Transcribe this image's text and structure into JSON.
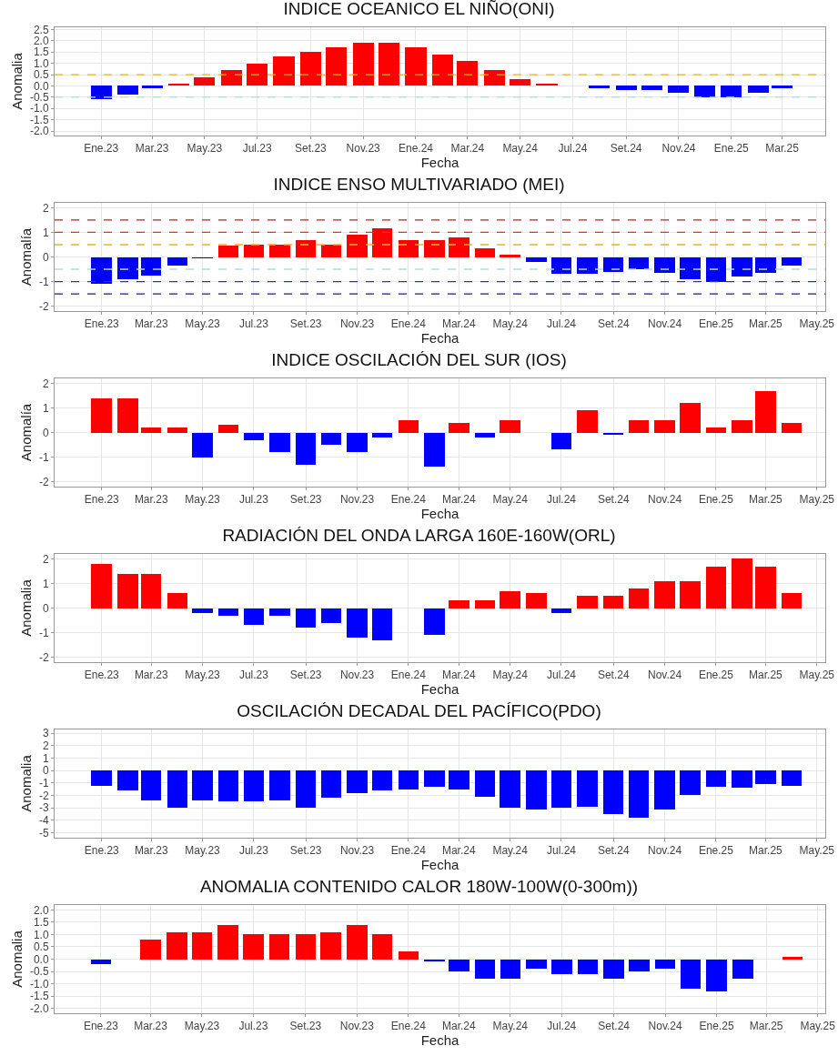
{
  "chart_data": [
    {
      "type": "bar",
      "title": "INDICE OCEANICO EL NIÑO(ONI)",
      "xlabel": "Fecha",
      "ylabel": "Anomalia",
      "x": [
        "2023-01",
        "2023-02",
        "2023-03",
        "2023-04",
        "2023-05",
        "2023-06",
        "2023-07",
        "2023-08",
        "2023-09",
        "2023-10",
        "2023-11",
        "2023-12",
        "2024-01",
        "2024-02",
        "2024-03",
        "2024-04",
        "2024-05",
        "2024-06",
        "2024-07",
        "2024-08",
        "2024-09",
        "2024-10",
        "2024-11",
        "2024-12",
        "2025-01",
        "2025-02",
        "2025-03"
      ],
      "values": [
        -0.6,
        -0.4,
        -0.1,
        0.1,
        0.4,
        0.7,
        1.0,
        1.3,
        1.5,
        1.7,
        1.9,
        1.9,
        1.7,
        1.4,
        1.1,
        0.7,
        0.3,
        0.1,
        null,
        -0.1,
        -0.2,
        -0.2,
        -0.3,
        -0.5,
        -0.5,
        -0.3,
        -0.1
      ],
      "colors": [
        "#0000ff",
        "#0000ff",
        "#0000ff",
        "#ff0000",
        "#ff0000",
        "#ff0000",
        "#ff0000",
        "#ff0000",
        "#ff0000",
        "#ff0000",
        "#ff0000",
        "#ff0000",
        "#ff0000",
        "#ff0000",
        "#ff0000",
        "#ff0000",
        "#ff0000",
        "#ff0000",
        null,
        "#0000ff",
        "#0000ff",
        "#0000ff",
        "#0000ff",
        "#0000ff",
        "#0000ff",
        "#0000ff",
        "#0000ff"
      ],
      "xlim": [
        "2022-11-08",
        "2025-04-20"
      ],
      "xticks": [
        {
          "value": "2023-01",
          "label": "Ene.23"
        },
        {
          "value": "2023-03",
          "label": "Mar.23"
        },
        {
          "value": "2023-05",
          "label": "May.23"
        },
        {
          "value": "2023-07",
          "label": "Jul.23"
        },
        {
          "value": "2023-09",
          "label": "Set.23"
        },
        {
          "value": "2023-11",
          "label": "Nov.23"
        },
        {
          "value": "2024-01",
          "label": "Ene.24"
        },
        {
          "value": "2024-03",
          "label": "Mar.24"
        },
        {
          "value": "2024-05",
          "label": "May.24"
        },
        {
          "value": "2024-07",
          "label": "Jul.24"
        },
        {
          "value": "2024-09",
          "label": "Set.24"
        },
        {
          "value": "2024-11",
          "label": "Nov.24"
        },
        {
          "value": "2025-01",
          "label": "Ene.25"
        },
        {
          "value": "2025-03",
          "label": "Mar.25"
        }
      ],
      "ylim": [
        -2.2,
        2.6
      ],
      "yticks": [
        {
          "value": -2,
          "label": "-2.0"
        },
        {
          "value": -1.5,
          "label": "-1.5"
        },
        {
          "value": -1,
          "label": "-1.0"
        },
        {
          "value": -0.5,
          "label": "-0.5"
        },
        {
          "value": 0,
          "label": "0.0"
        },
        {
          "value": 0.5,
          "label": "0.5"
        },
        {
          "value": 1,
          "label": "1.0"
        },
        {
          "value": 1.5,
          "label": "1.5"
        },
        {
          "value": 2,
          "label": "2.0"
        },
        {
          "value": 2.5,
          "label": "2.5"
        }
      ],
      "ref_lines": [
        {
          "axis": "y",
          "value": 0.5,
          "color": "#f0b020",
          "line_style": "dashed"
        },
        {
          "axis": "y",
          "value": -0.5,
          "color": "#b3dede",
          "line_style": "dashed"
        }
      ],
      "grid": true,
      "legend": false
    },
    {
      "type": "bar",
      "title": "INDICE ENSO MULTIVARIADO (MEI)",
      "xlabel": "Fecha",
      "ylabel": "Anomalía",
      "x": [
        "2023-01",
        "2023-02",
        "2023-03",
        "2023-04",
        "2023-05",
        "2023-06",
        "2023-07",
        "2023-08",
        "2023-09",
        "2023-10",
        "2023-11",
        "2023-12",
        "2024-01",
        "2024-02",
        "2024-03",
        "2024-04",
        "2024-05",
        "2024-06",
        "2024-07",
        "2024-08",
        "2024-09",
        "2024-10",
        "2024-11",
        "2024-12",
        "2025-01",
        "2025-02",
        "2025-03",
        "2025-04"
      ],
      "values": [
        -1.1,
        -0.9,
        -0.75,
        -0.35,
        -0.05,
        0.45,
        0.5,
        0.5,
        0.7,
        0.5,
        0.9,
        1.15,
        0.7,
        0.7,
        0.8,
        0.35,
        0.1,
        -0.2,
        -0.7,
        -0.7,
        -0.6,
        -0.5,
        -0.65,
        -0.9,
        -1.0,
        -0.8,
        -0.65,
        -0.35
      ],
      "colors": [
        "#0000ff",
        "#0000ff",
        "#0000ff",
        "#0000ff",
        "#0000ff",
        "#ff0000",
        "#ff0000",
        "#ff0000",
        "#ff0000",
        "#ff0000",
        "#ff0000",
        "#ff0000",
        "#ff0000",
        "#ff0000",
        "#ff0000",
        "#ff0000",
        "#ff0000",
        "#0000ff",
        "#0000ff",
        "#0000ff",
        "#0000ff",
        "#0000ff",
        "#0000ff",
        "#0000ff",
        "#0000ff",
        "#0000ff",
        "#0000ff",
        "#0000ff"
      ],
      "xlim": [
        "2022-11-06",
        "2025-05-11"
      ],
      "xticks": [
        {
          "value": "2023-01",
          "label": "Ene.23"
        },
        {
          "value": "2023-03",
          "label": "Mar.23"
        },
        {
          "value": "2023-05",
          "label": "May.23"
        },
        {
          "value": "2023-07",
          "label": "Jul.23"
        },
        {
          "value": "2023-09",
          "label": "Set.23"
        },
        {
          "value": "2023-11",
          "label": "Nov.23"
        },
        {
          "value": "2024-01",
          "label": "Ene.24"
        },
        {
          "value": "2024-03",
          "label": "Mar.24"
        },
        {
          "value": "2024-05",
          "label": "May.24"
        },
        {
          "value": "2024-07",
          "label": "Jul.24"
        },
        {
          "value": "2024-09",
          "label": "Set.24"
        },
        {
          "value": "2024-11",
          "label": "Nov.24"
        },
        {
          "value": "2025-01",
          "label": "Ene.25"
        },
        {
          "value": "2025-03",
          "label": "Mar.25"
        },
        {
          "value": "2025-05",
          "label": "May.25"
        }
      ],
      "ylim": [
        -2.2,
        2.2
      ],
      "yticks": [
        -2,
        -1,
        0,
        1,
        2
      ],
      "ref_lines": [
        {
          "axis": "y",
          "value": 1.5,
          "color": "#b22222",
          "line_style": "dashed"
        },
        {
          "axis": "y",
          "value": 1,
          "color": "#e03030",
          "line_style": "dashed"
        },
        {
          "axis": "y",
          "value": 0.5,
          "color": "#f0b020",
          "line_style": "dashed"
        },
        {
          "axis": "y",
          "value": -0.5,
          "color": "#b3dede",
          "line_style": "dashed"
        },
        {
          "axis": "y",
          "value": -1,
          "color": "#3030d0",
          "line_style": "dashed"
        },
        {
          "axis": "y",
          "value": -1.5,
          "color": "#1a1a9c",
          "line_style": "dashed"
        }
      ],
      "grid": true,
      "legend": false
    },
    {
      "type": "bar",
      "title": "INDICE OSCILACIÓN DEL SUR (IOS)",
      "xlabel": "Fecha",
      "ylabel": "Anomalía",
      "x": [
        "2023-01",
        "2023-02",
        "2023-03",
        "2023-04",
        "2023-05",
        "2023-06",
        "2023-07",
        "2023-08",
        "2023-09",
        "2023-10",
        "2023-11",
        "2023-12",
        "2024-01",
        "2024-02",
        "2024-03",
        "2024-04",
        "2024-05",
        "2024-06",
        "2024-07",
        "2024-08",
        "2024-09",
        "2024-10",
        "2024-11",
        "2024-12",
        "2025-01",
        "2025-02",
        "2025-03",
        "2025-04"
      ],
      "values": [
        1.4,
        1.4,
        0.2,
        0.2,
        -1.0,
        0.3,
        -0.3,
        -0.8,
        -1.3,
        -0.5,
        -0.8,
        -0.2,
        0.5,
        -1.4,
        0.4,
        -0.2,
        0.5,
        null,
        -0.7,
        0.9,
        -0.1,
        0.5,
        0.5,
        1.2,
        0.2,
        0.5,
        1.7,
        0.4
      ],
      "colors": [
        "#ff0000",
        "#ff0000",
        "#ff0000",
        "#ff0000",
        "#0000ff",
        "#ff0000",
        "#0000ff",
        "#0000ff",
        "#0000ff",
        "#0000ff",
        "#0000ff",
        "#0000ff",
        "#ff0000",
        "#0000ff",
        "#ff0000",
        "#0000ff",
        "#ff0000",
        null,
        "#0000ff",
        "#ff0000",
        "#0000ff",
        "#ff0000",
        "#ff0000",
        "#ff0000",
        "#ff0000",
        "#ff0000",
        "#ff0000",
        "#ff0000"
      ],
      "xlim": [
        "2022-11-06",
        "2025-05-11"
      ],
      "xticks": [
        {
          "value": "2023-01",
          "label": "Ene.23"
        },
        {
          "value": "2023-03",
          "label": "Mar.23"
        },
        {
          "value": "2023-05",
          "label": "May.23"
        },
        {
          "value": "2023-07",
          "label": "Jul.23"
        },
        {
          "value": "2023-09",
          "label": "Set.23"
        },
        {
          "value": "2023-11",
          "label": "Nov.23"
        },
        {
          "value": "2024-01",
          "label": "Ene.24"
        },
        {
          "value": "2024-03",
          "label": "Mar.24"
        },
        {
          "value": "2024-05",
          "label": "May.24"
        },
        {
          "value": "2024-07",
          "label": "Jul.24"
        },
        {
          "value": "2024-09",
          "label": "Set.24"
        },
        {
          "value": "2024-11",
          "label": "Nov.24"
        },
        {
          "value": "2025-01",
          "label": "Ene.25"
        },
        {
          "value": "2025-03",
          "label": "Mar.25"
        },
        {
          "value": "2025-05",
          "label": "May.25"
        }
      ],
      "ylim": [
        -2.2,
        2.2
      ],
      "yticks": [
        -2,
        -1,
        0,
        1,
        2
      ],
      "grid": true,
      "legend": false
    },
    {
      "type": "bar",
      "title": "RADIACIÓN DEL ONDA LARGA 160E-160W(ORL)",
      "xlabel": "Fecha",
      "ylabel": "Anomalia",
      "x": [
        "2023-01",
        "2023-02",
        "2023-03",
        "2023-04",
        "2023-05",
        "2023-06",
        "2023-07",
        "2023-08",
        "2023-09",
        "2023-10",
        "2023-11",
        "2023-12",
        "2024-01",
        "2024-02",
        "2024-03",
        "2024-04",
        "2024-05",
        "2024-06",
        "2024-07",
        "2024-08",
        "2024-09",
        "2024-10",
        "2024-11",
        "2024-12",
        "2025-01",
        "2025-02",
        "2025-03",
        "2025-04"
      ],
      "values": [
        1.8,
        1.4,
        1.4,
        0.6,
        -0.2,
        -0.3,
        -0.7,
        -0.3,
        -0.8,
        -0.6,
        -1.2,
        -1.3,
        null,
        -1.1,
        0.3,
        0.3,
        0.7,
        0.6,
        -0.2,
        0.5,
        0.5,
        0.8,
        1.1,
        1.1,
        1.7,
        2.0,
        1.7,
        0.6
      ],
      "colors": [
        "#ff0000",
        "#ff0000",
        "#ff0000",
        "#ff0000",
        "#0000ff",
        "#0000ff",
        "#0000ff",
        "#0000ff",
        "#0000ff",
        "#0000ff",
        "#0000ff",
        "#0000ff",
        null,
        "#0000ff",
        "#ff0000",
        "#ff0000",
        "#ff0000",
        "#ff0000",
        "#0000ff",
        "#ff0000",
        "#ff0000",
        "#ff0000",
        "#ff0000",
        "#ff0000",
        "#ff0000",
        "#ff0000",
        "#ff0000",
        "#ff0000"
      ],
      "xlim": [
        "2022-11-06",
        "2025-05-11"
      ],
      "xticks": [
        {
          "value": "2023-01",
          "label": "Ene.23"
        },
        {
          "value": "2023-03",
          "label": "Mar.23"
        },
        {
          "value": "2023-05",
          "label": "May.23"
        },
        {
          "value": "2023-07",
          "label": "Jul.23"
        },
        {
          "value": "2023-09",
          "label": "Set.23"
        },
        {
          "value": "2023-11",
          "label": "Nov.23"
        },
        {
          "value": "2024-01",
          "label": "Ene.24"
        },
        {
          "value": "2024-03",
          "label": "Mar.24"
        },
        {
          "value": "2024-05",
          "label": "May.24"
        },
        {
          "value": "2024-07",
          "label": "Jul.24"
        },
        {
          "value": "2024-09",
          "label": "Set.24"
        },
        {
          "value": "2024-11",
          "label": "Nov.24"
        },
        {
          "value": "2025-01",
          "label": "Ene.25"
        },
        {
          "value": "2025-03",
          "label": "Mar.25"
        },
        {
          "value": "2025-05",
          "label": "May.25"
        }
      ],
      "ylim": [
        -2.2,
        2.2
      ],
      "yticks": [
        -2,
        -1,
        0,
        1,
        2
      ],
      "grid": true,
      "legend": false
    },
    {
      "type": "bar",
      "title": "OSCILACIÓN DECADAL DEL PACÍFICO(PDO)",
      "xlabel": "Fecha",
      "ylabel": "Anomalia",
      "x": [
        "2023-01",
        "2023-02",
        "2023-03",
        "2023-04",
        "2023-05",
        "2023-06",
        "2023-07",
        "2023-08",
        "2023-09",
        "2023-10",
        "2023-11",
        "2023-12",
        "2024-01",
        "2024-02",
        "2024-03",
        "2024-04",
        "2024-05",
        "2024-06",
        "2024-07",
        "2024-08",
        "2024-09",
        "2024-10",
        "2024-11",
        "2024-12",
        "2025-01",
        "2025-02",
        "2025-03",
        "2025-04"
      ],
      "values": [
        -1.2,
        -1.6,
        -2.4,
        -3.0,
        -2.4,
        -2.5,
        -2.5,
        -2.4,
        -3.0,
        -2.2,
        -1.8,
        -1.6,
        -1.5,
        -1.3,
        -1.5,
        -2.1,
        -3.0,
        -3.1,
        -3.0,
        -2.9,
        -3.5,
        -3.8,
        -3.1,
        -2.0,
        -1.3,
        -1.4,
        -1.1,
        -1.2
      ],
      "colors": [
        "#0000ff",
        "#0000ff",
        "#0000ff",
        "#0000ff",
        "#0000ff",
        "#0000ff",
        "#0000ff",
        "#0000ff",
        "#0000ff",
        "#0000ff",
        "#0000ff",
        "#0000ff",
        "#0000ff",
        "#0000ff",
        "#0000ff",
        "#0000ff",
        "#0000ff",
        "#0000ff",
        "#0000ff",
        "#0000ff",
        "#0000ff",
        "#0000ff",
        "#0000ff",
        "#0000ff",
        "#0000ff",
        "#0000ff",
        "#0000ff",
        "#0000ff"
      ],
      "xlim": [
        "2022-11-06",
        "2025-05-11"
      ],
      "xticks": [
        {
          "value": "2023-01",
          "label": "Ene.23"
        },
        {
          "value": "2023-03",
          "label": "Mar.23"
        },
        {
          "value": "2023-05",
          "label": "May.23"
        },
        {
          "value": "2023-07",
          "label": "Jul.23"
        },
        {
          "value": "2023-09",
          "label": "Set.23"
        },
        {
          "value": "2023-11",
          "label": "Nov.23"
        },
        {
          "value": "2024-01",
          "label": "Ene.24"
        },
        {
          "value": "2024-03",
          "label": "Mar.24"
        },
        {
          "value": "2024-05",
          "label": "May.24"
        },
        {
          "value": "2024-07",
          "label": "Jul.24"
        },
        {
          "value": "2024-09",
          "label": "Set.24"
        },
        {
          "value": "2024-11",
          "label": "Nov.24"
        },
        {
          "value": "2025-01",
          "label": "Ene.25"
        },
        {
          "value": "2025-03",
          "label": "Mar.25"
        },
        {
          "value": "2025-05",
          "label": "May.25"
        }
      ],
      "ylim": [
        -5.4,
        3.3
      ],
      "yticks": [
        -5,
        -4,
        -3,
        -2,
        -1,
        0,
        1,
        2,
        3
      ],
      "grid": true,
      "legend": false
    },
    {
      "type": "bar",
      "title": "ANOMALIA CONTENIDO CALOR 180W-100W(0-300m))",
      "xlabel": "Fecha",
      "ylabel": "Anomalia",
      "x": [
        "2023-01",
        "2023-02",
        "2023-03",
        "2023-04",
        "2023-05",
        "2023-06",
        "2023-07",
        "2023-08",
        "2023-09",
        "2023-10",
        "2023-11",
        "2023-12",
        "2024-01",
        "2024-02",
        "2024-03",
        "2024-04",
        "2024-05",
        "2024-06",
        "2024-07",
        "2024-08",
        "2024-09",
        "2024-10",
        "2024-11",
        "2024-12",
        "2025-01",
        "2025-02",
        "2025-03",
        "2025-04"
      ],
      "values": [
        -0.2,
        null,
        0.8,
        1.1,
        1.1,
        1.4,
        1.0,
        1.0,
        1.0,
        1.1,
        1.4,
        1.0,
        0.3,
        -0.1,
        -0.5,
        -0.8,
        -0.8,
        -0.4,
        -0.6,
        -0.6,
        -0.8,
        -0.5,
        -0.4,
        -1.2,
        -1.3,
        -0.8,
        null,
        0.1
      ],
      "colors": [
        "#0000ff",
        null,
        "#ff0000",
        "#ff0000",
        "#ff0000",
        "#ff0000",
        "#ff0000",
        "#ff0000",
        "#ff0000",
        "#ff0000",
        "#ff0000",
        "#ff0000",
        "#ff0000",
        "#0000ff",
        "#0000ff",
        "#0000ff",
        "#0000ff",
        "#0000ff",
        "#0000ff",
        "#0000ff",
        "#0000ff",
        "#0000ff",
        "#0000ff",
        "#0000ff",
        "#0000ff",
        "#0000ff",
        null,
        "#ff0000"
      ],
      "xlim": [
        "2022-11-07",
        "2025-05-10"
      ],
      "xticks": [
        {
          "value": "2023-01",
          "label": "Ene.23"
        },
        {
          "value": "2023-03",
          "label": "Mar.23"
        },
        {
          "value": "2023-05",
          "label": "May.23"
        },
        {
          "value": "2023-07",
          "label": "Jul.23"
        },
        {
          "value": "2023-09",
          "label": "Set.23"
        },
        {
          "value": "2023-11",
          "label": "Nov.23"
        },
        {
          "value": "2024-01",
          "label": "Ene.24"
        },
        {
          "value": "2024-03",
          "label": "Mar.24"
        },
        {
          "value": "2024-05",
          "label": "May.24"
        },
        {
          "value": "2024-07",
          "label": "Jul.24"
        },
        {
          "value": "2024-09",
          "label": "Set.24"
        },
        {
          "value": "2024-11",
          "label": "Nov.24"
        },
        {
          "value": "2025-01",
          "label": "Ene.25"
        },
        {
          "value": "2025-03",
          "label": "Mar.25"
        },
        {
          "value": "2025-05",
          "label": "May.25"
        }
      ],
      "ylim": [
        -2.2,
        2.2
      ],
      "yticks": [
        {
          "value": -2,
          "label": "-2.0"
        },
        {
          "value": -1.5,
          "label": "-1.5"
        },
        {
          "value": -1,
          "label": "-1.0"
        },
        {
          "value": -0.5,
          "label": "-0.5"
        },
        {
          "value": 0,
          "label": "0.0"
        },
        {
          "value": 0.5,
          "label": "0.5"
        },
        {
          "value": 1,
          "label": "1.0"
        },
        {
          "value": 1.5,
          "label": "1.5"
        },
        {
          "value": 2,
          "label": "2.0"
        }
      ],
      "grid": true,
      "legend": false
    }
  ]
}
